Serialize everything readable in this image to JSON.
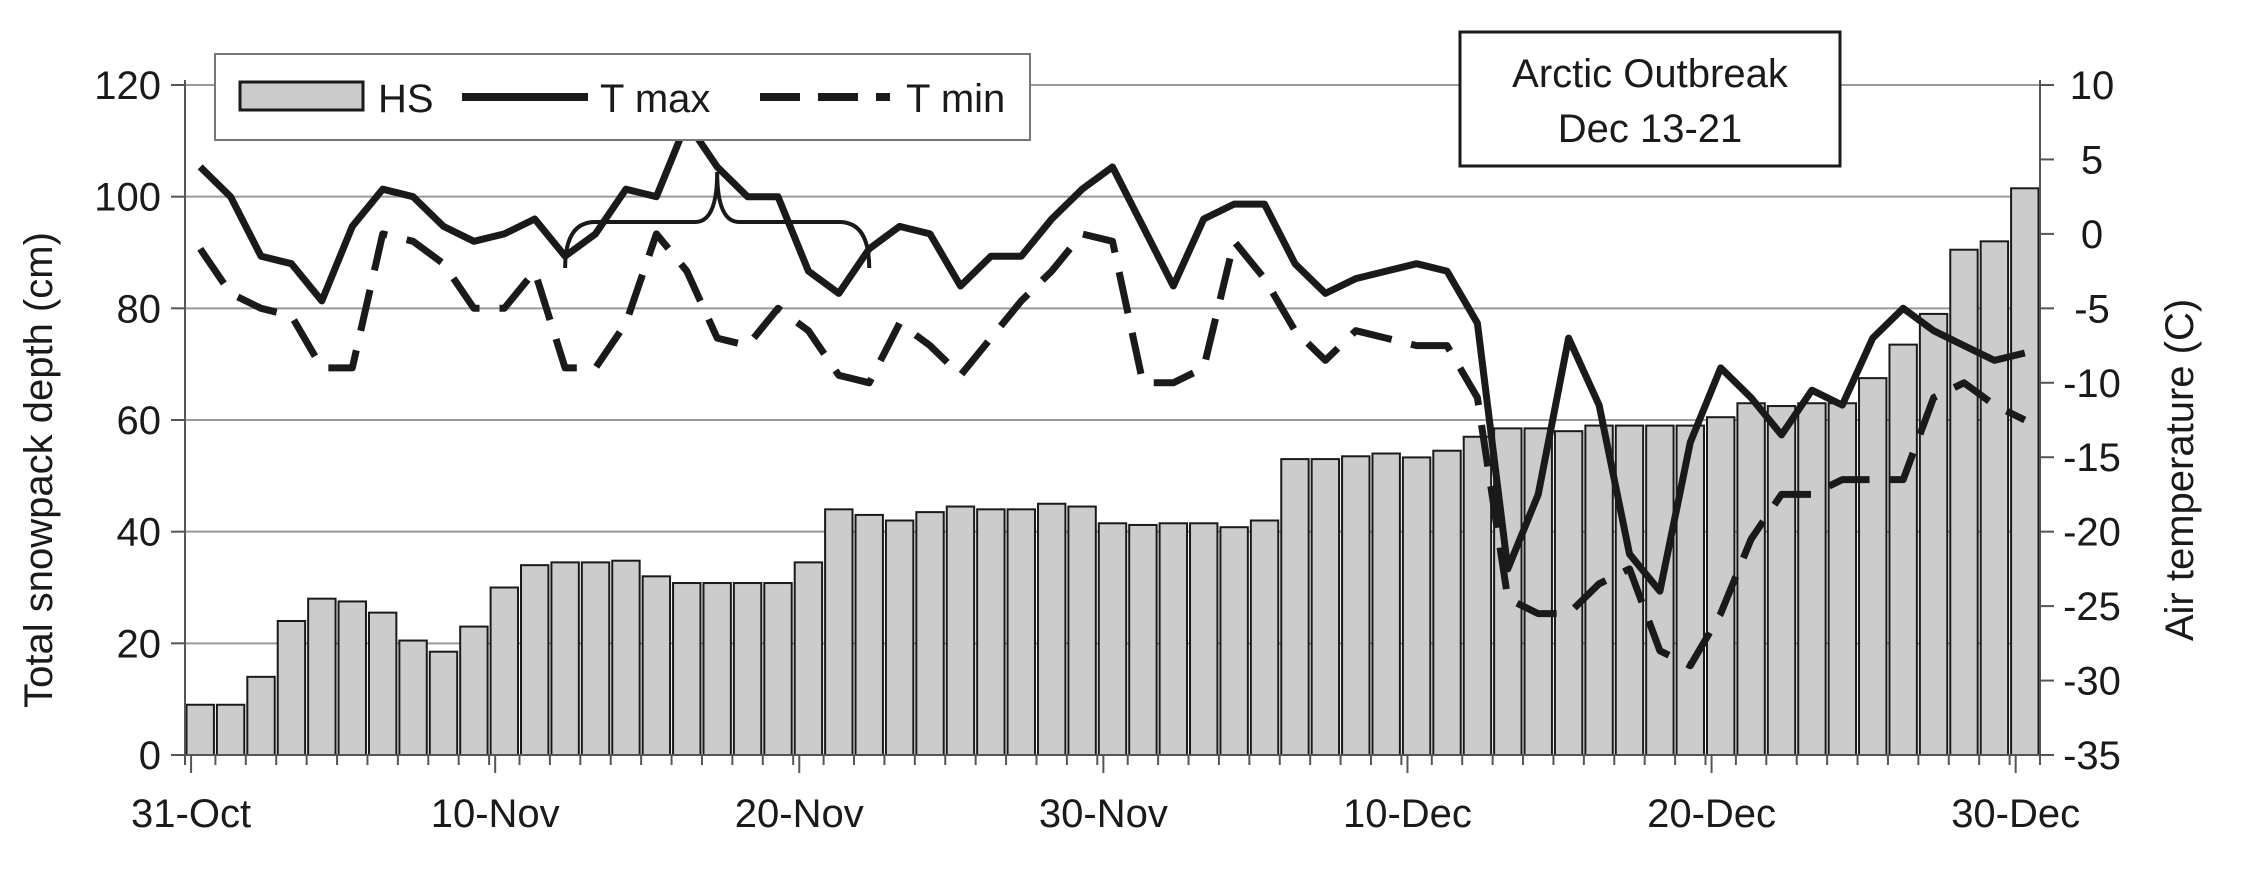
{
  "chart_data": {
    "type": "bar+line",
    "title": "",
    "x": {
      "start_date": "2024-10-31",
      "tick_labels": [
        "31-Oct",
        "10-Nov",
        "20-Nov",
        "30-Nov",
        "10-Dec",
        "20-Dec",
        "30-Dec"
      ]
    },
    "y_left": {
      "label": "Total snowpack depth (cm)",
      "min": 0,
      "max": 120,
      "ticks": [
        "0",
        "20",
        "40",
        "60",
        "80",
        "100",
        "120"
      ]
    },
    "y_right": {
      "label": "Air temperature (C)",
      "min": -35,
      "max": 10,
      "ticks": [
        "-35",
        "-30",
        "-25",
        "-20",
        "-15",
        "-10",
        "-5",
        "0",
        "5",
        "10"
      ]
    },
    "grid": true,
    "legend": {
      "placement": "top-left",
      "entries": [
        "HS",
        "T max",
        "T min"
      ]
    },
    "annotation": {
      "line1": "Arctic Outbreak",
      "line2": "Dec 13-21",
      "range_days": [
        12.5,
        22.5
      ]
    },
    "series": [
      {
        "name": "HS",
        "kind": "bar",
        "axis": "left",
        "color": "#cccccc",
        "values": [
          9,
          9,
          14,
          24,
          28,
          27.5,
          25.5,
          20.5,
          18.5,
          23,
          30,
          34,
          34.5,
          34.5,
          34.8,
          32,
          30.8,
          30.8,
          30.8,
          30.8,
          34.5,
          44,
          43,
          42,
          43.5,
          44.5,
          44,
          44,
          45,
          44.5,
          41.5,
          41.2,
          41.5,
          41.5,
          40.8,
          42,
          53,
          53,
          53.5,
          54,
          53.3,
          54.5,
          57,
          58.5,
          58.5,
          58,
          59,
          59,
          59,
          59,
          60.5,
          63,
          62.5,
          63,
          63,
          67.5,
          73.5,
          79,
          90.5,
          92,
          101.5
        ]
      },
      {
        "name": "T max",
        "kind": "line",
        "axis": "right",
        "color": "#1a1a1a",
        "values": [
          4.5,
          2.5,
          -1.5,
          -2,
          -4.5,
          0.5,
          3,
          2.5,
          0.5,
          -0.5,
          0,
          1,
          -1.5,
          0,
          3,
          2.5,
          7.5,
          4.5,
          2.5,
          2.5,
          -2.5,
          -4,
          -1,
          0.5,
          0,
          -3.5,
          -1.5,
          -1.5,
          1,
          3,
          4.5,
          0.5,
          -3.5,
          1,
          2,
          2,
          -2,
          -4,
          -3,
          -2.5,
          -2,
          -2.5,
          -6,
          -22.5,
          -17.5,
          -7,
          -11.5,
          -21.5,
          -24,
          -14,
          -9,
          -11,
          -13.5,
          -10.5,
          -11.5,
          -7,
          -5,
          -6.5,
          -7.5,
          -8.5,
          -8
        ]
      },
      {
        "name": "T min",
        "kind": "line",
        "axis": "right",
        "color": "#1a1a1a",
        "dashed": true,
        "values": [
          -1,
          -4,
          -5,
          -5.5,
          -9,
          -9,
          0,
          -0.5,
          -2,
          -5,
          -5,
          -2.5,
          -9,
          -9,
          -6,
          0,
          -2.5,
          -7,
          -7.5,
          -5,
          -6.5,
          -9.5,
          -10,
          -6,
          -7.5,
          -9.5,
          -7,
          -4.5,
          -2.5,
          0,
          -0.5,
          -10,
          -10,
          -9,
          -0.5,
          -3,
          -6.5,
          -8.5,
          -6.5,
          -7,
          -7.5,
          -7.5,
          -11,
          -24.5,
          -25.5,
          -25.5,
          -23.5,
          -22.5,
          -28,
          -29,
          -25.5,
          -20.5,
          -17.5,
          -17.5,
          -16.5,
          -16.5,
          -16.5,
          -11,
          -10,
          -11.5,
          -12.5
        ]
      }
    ]
  }
}
